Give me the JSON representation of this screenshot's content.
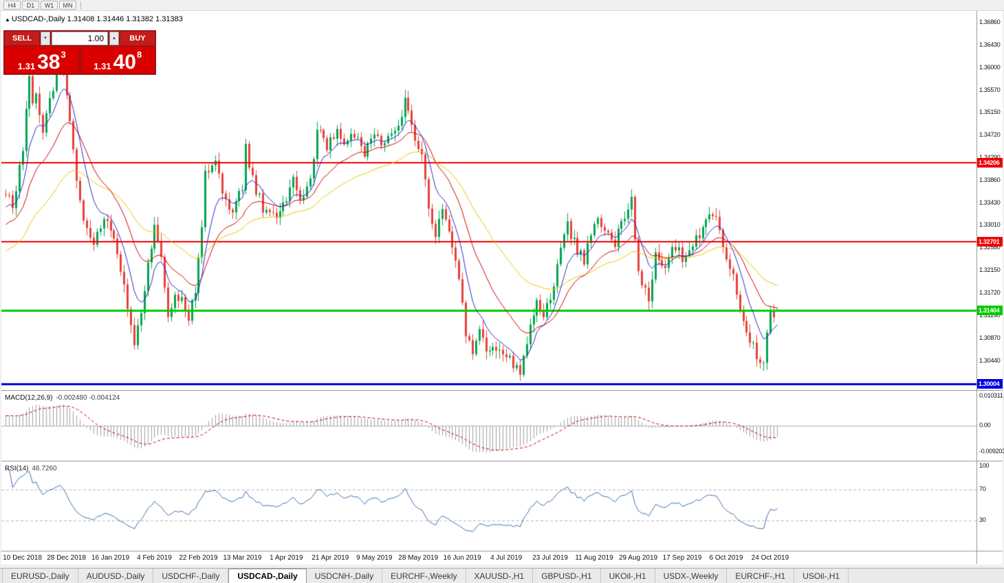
{
  "toolbar": {
    "timeframes": [
      "H4",
      "D1",
      "W1",
      "MN"
    ]
  },
  "chart_header": {
    "marker": "▲",
    "symbol": "USDCAD-,Daily",
    "ohlc": "1.31408 1.31446 1.31382 1.31383"
  },
  "trade_panel": {
    "sell_label": "SELL",
    "buy_label": "BUY",
    "volume_value": "1.00",
    "sell_price": {
      "prefix": "1.31",
      "big": "38",
      "sup": "3"
    },
    "buy_price": {
      "prefix": "1.31",
      "big": "40",
      "sup": "8"
    }
  },
  "icons": {
    "volume_up": "▲",
    "volume_down": "▼"
  },
  "price_axis": {
    "ticks": [
      "1.36860",
      "1.36430",
      "1.36000",
      "1.35570",
      "1.35150",
      "1.34720",
      "1.34290",
      "1.33860",
      "1.33430",
      "1.33010",
      "1.32580",
      "1.32150",
      "1.31720",
      "1.31290",
      "1.30870",
      "1.30440",
      "1.30010"
    ]
  },
  "hlines": [
    {
      "price": 1.34206,
      "label": "1.34206",
      "color": "#f00000",
      "width": 2
    },
    {
      "price": 1.32701,
      "label": "1.32701",
      "color": "#f00000",
      "width": 2
    },
    {
      "price": 1.31404,
      "label": "1.31404",
      "color": "#00cc00",
      "width": 3
    },
    {
      "price": 1.30004,
      "label": "1.30004",
      "color": "#0000e0",
      "width": 3
    }
  ],
  "macd_panel": {
    "name_label": "MACD(12,26,9)",
    "values_label": "-0.002480 -0.004124",
    "params": {
      "fast": 12,
      "slow": 26,
      "signal": 9
    },
    "axis_labels": [
      {
        "value": 0.010311,
        "text": "0.010311"
      },
      {
        "value": 0,
        "text": "0.00"
      },
      {
        "value": -0.009203,
        "text": "-0.009203"
      }
    ],
    "histogram_color": "#a0a0a0",
    "signal_color": "#c40000"
  },
  "rsi_panel": {
    "name_label": "RSI(14)",
    "value_label": "46.7260",
    "period": 14,
    "axis_labels": [
      {
        "value": 100,
        "text": "100"
      },
      {
        "value": 70,
        "text": "70"
      },
      {
        "value": 30,
        "text": "30"
      }
    ],
    "levels": [
      70,
      30
    ],
    "line_color": "#3e6fb0"
  },
  "time_axis": {
    "labels": [
      "10 Dec 2018",
      "28 Dec 2018",
      "16 Jan 2019",
      "4 Feb 2019",
      "22 Feb 2019",
      "13 Mar 2019",
      "1 Apr 2019",
      "21 Apr 2019",
      "9 May 2019",
      "28 May 2019",
      "16 Jun 2019",
      "4 Jul 2019",
      "23 Jul 2019",
      "11 Aug 2019",
      "29 Aug 2019",
      "17 Sep 2019",
      "6 Oct 2019",
      "24 Oct 2019"
    ],
    "bar_indices": [
      5,
      18,
      31,
      44,
      57,
      70,
      83,
      96,
      109,
      122,
      135,
      148,
      161,
      174,
      187,
      200,
      213,
      226
    ]
  },
  "tabs": {
    "items": [
      {
        "label": "EURUSD-,Daily",
        "active": false
      },
      {
        "label": "AUDUSD-,Daily",
        "active": false
      },
      {
        "label": "USDCHF-,Daily",
        "active": false
      },
      {
        "label": "USDCAD-,Daily",
        "active": true
      },
      {
        "label": "USDCNH-,Daily",
        "active": false
      },
      {
        "label": "EURCHF-,Weekly",
        "active": false
      },
      {
        "label": "XAUUSD-,H1",
        "active": false
      },
      {
        "label": "GBPUSD-,H1",
        "active": false
      },
      {
        "label": "UKOil-,H1",
        "active": false
      },
      {
        "label": "USDX-,Weekly",
        "active": false
      },
      {
        "label": "EURCHF-,H1",
        "active": false
      },
      {
        "label": "USOil-,H1",
        "active": false
      }
    ]
  },
  "chart_data": {
    "type": "candlestick",
    "symbol": "USDCAD",
    "timeframe": "Daily",
    "bar_count": 229,
    "last_bar": {
      "open": 1.31408,
      "high": 1.31446,
      "low": 1.31382,
      "close": 1.31383
    },
    "candle_up_color": "#00a550",
    "candle_down_color": "#e8403a",
    "moving_averages": [
      {
        "name": "fast",
        "period": 8,
        "color": "#2a2ac8"
      },
      {
        "name": "medium",
        "period": 20,
        "color": "#d40000"
      },
      {
        "name": "slow",
        "period": 45,
        "color": "#efc400"
      }
    ],
    "close_waypoints": [
      [
        0,
        1.336
      ],
      [
        2,
        1.334
      ],
      [
        5,
        1.345
      ],
      [
        7,
        1.3585
      ],
      [
        8,
        1.353
      ],
      [
        9,
        1.356
      ],
      [
        11,
        1.348
      ],
      [
        13,
        1.3545
      ],
      [
        16,
        1.3605
      ],
      [
        18,
        1.3555
      ],
      [
        21,
        1.338
      ],
      [
        23,
        1.3305
      ],
      [
        26,
        1.326
      ],
      [
        29,
        1.3315
      ],
      [
        32,
        1.3285
      ],
      [
        35,
        1.318
      ],
      [
        38,
        1.3065
      ],
      [
        40,
        1.314
      ],
      [
        43,
        1.3265
      ],
      [
        44,
        1.3295
      ],
      [
        46,
        1.3235
      ],
      [
        48,
        1.3125
      ],
      [
        50,
        1.3165
      ],
      [
        52,
        1.3155
      ],
      [
        54,
        1.3125
      ],
      [
        56,
        1.3175
      ],
      [
        58,
        1.33
      ],
      [
        59,
        1.3405
      ],
      [
        62,
        1.342
      ],
      [
        64,
        1.336
      ],
      [
        67,
        1.3325
      ],
      [
        70,
        1.3375
      ],
      [
        71,
        1.3445
      ],
      [
        74,
        1.337
      ],
      [
        76,
        1.3335
      ],
      [
        78,
        1.3325
      ],
      [
        80,
        1.3315
      ],
      [
        83,
        1.3355
      ],
      [
        85,
        1.339
      ],
      [
        87,
        1.3345
      ],
      [
        90,
        1.3385
      ],
      [
        92,
        1.349
      ],
      [
        95,
        1.345
      ],
      [
        98,
        1.348
      ],
      [
        100,
        1.3465
      ],
      [
        103,
        1.3478
      ],
      [
        106,
        1.3438
      ],
      [
        108,
        1.3472
      ],
      [
        111,
        1.3455
      ],
      [
        113,
        1.3478
      ],
      [
        116,
        1.3492
      ],
      [
        118,
        1.354
      ],
      [
        120,
        1.3495
      ],
      [
        123,
        1.3425
      ],
      [
        125,
        1.334
      ],
      [
        127,
        1.3285
      ],
      [
        129,
        1.333
      ],
      [
        131,
        1.329
      ],
      [
        134,
        1.3205
      ],
      [
        136,
        1.31
      ],
      [
        138,
        1.3065
      ],
      [
        140,
        1.3095
      ],
      [
        143,
        1.306
      ],
      [
        146,
        1.3068
      ],
      [
        149,
        1.3048
      ],
      [
        152,
        1.3028
      ],
      [
        154,
        1.3085
      ],
      [
        157,
        1.316
      ],
      [
        159,
        1.3135
      ],
      [
        162,
        1.3175
      ],
      [
        164,
        1.3262
      ],
      [
        166,
        1.3302
      ],
      [
        169,
        1.3252
      ],
      [
        171,
        1.3238
      ],
      [
        173,
        1.3288
      ],
      [
        175,
        1.3322
      ],
      [
        177,
        1.3282
      ],
      [
        180,
        1.3268
      ],
      [
        182,
        1.3302
      ],
      [
        185,
        1.3352
      ],
      [
        187,
        1.3212
      ],
      [
        190,
        1.3162
      ],
      [
        192,
        1.3242
      ],
      [
        195,
        1.3228
      ],
      [
        198,
        1.3262
      ],
      [
        200,
        1.3242
      ],
      [
        203,
        1.3262
      ],
      [
        206,
        1.3292
      ],
      [
        207,
        1.3322
      ],
      [
        210,
        1.3312
      ],
      [
        212,
        1.3262
      ],
      [
        215,
        1.3202
      ],
      [
        217,
        1.3132
      ],
      [
        220,
        1.3082
      ],
      [
        222,
        1.3055
      ],
      [
        224,
        1.3048
      ],
      [
        226,
        1.3128
      ],
      [
        227,
        1.3135
      ],
      [
        228,
        1.31383
      ]
    ]
  }
}
